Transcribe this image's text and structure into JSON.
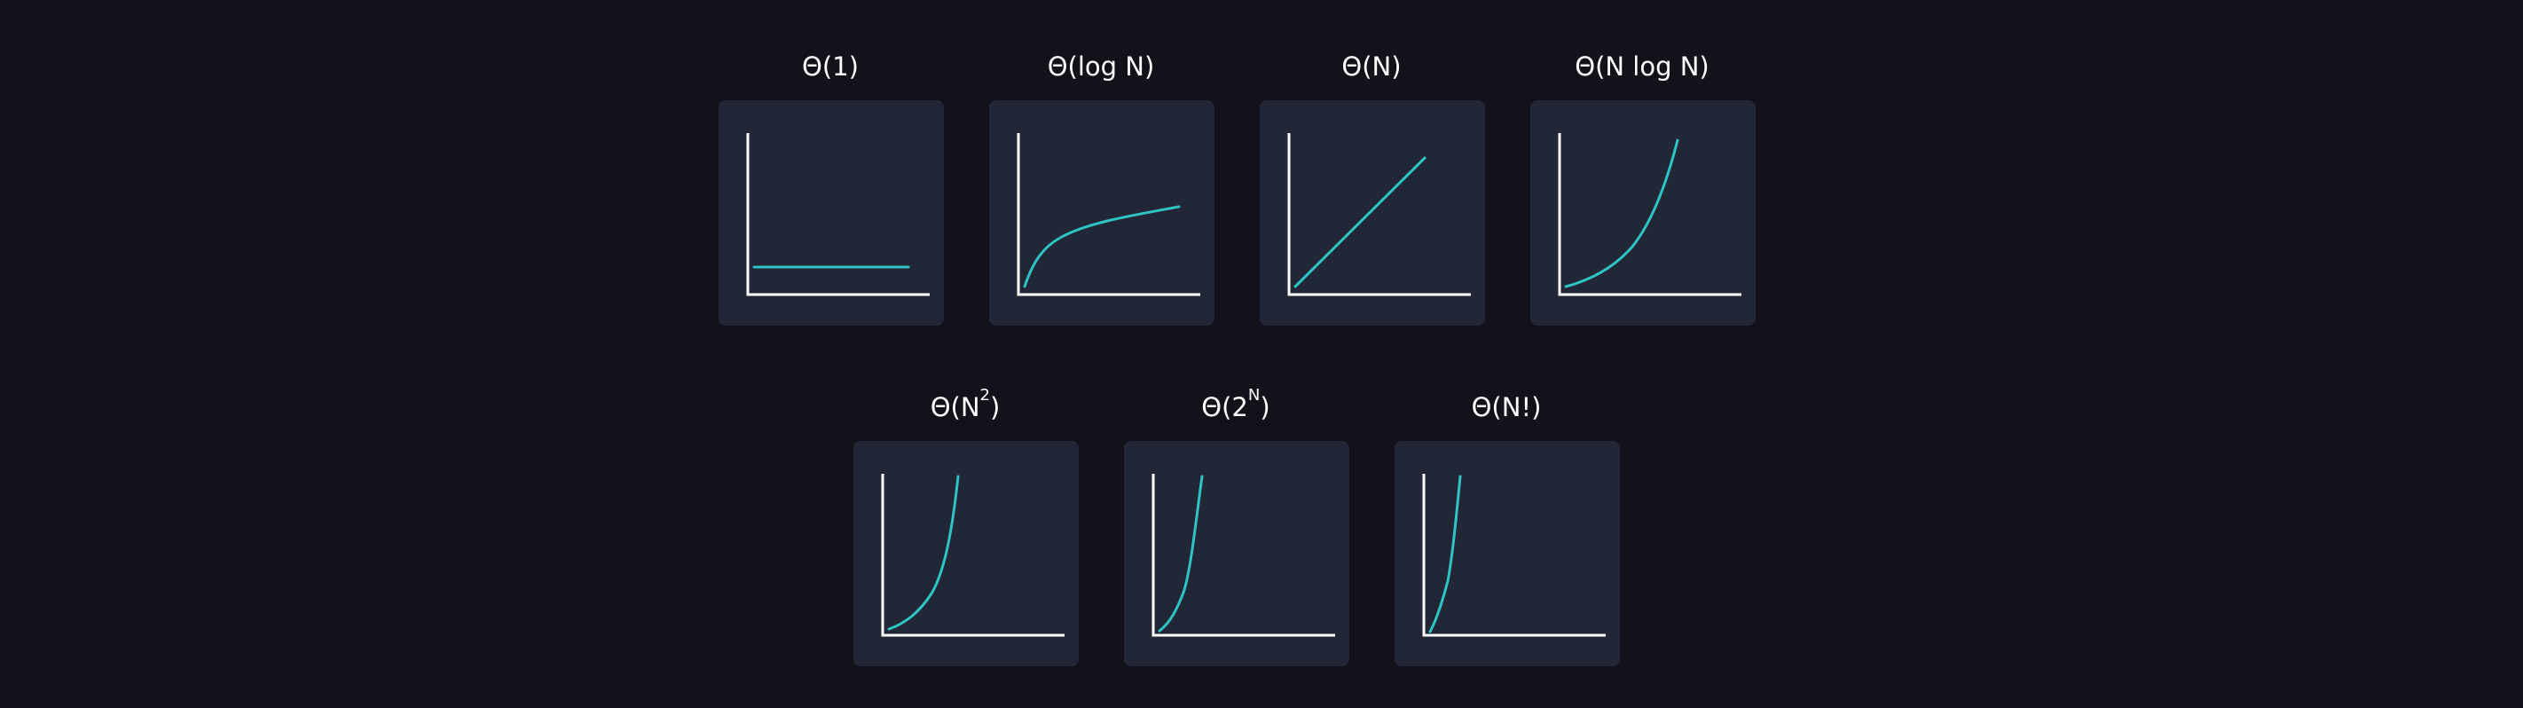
{
  "colors": {
    "background": "#13121b",
    "card": "#212736",
    "axis": "#ffffff",
    "curve": "#2ec4c4",
    "label": "#ffffff"
  },
  "complexities": [
    {
      "id": "constant",
      "label": "Θ(1)",
      "base": "Θ(1)",
      "sup": "",
      "tail": "",
      "curve_kind": "constant"
    },
    {
      "id": "logarithmic",
      "label": "Θ(log N)",
      "base": "Θ(log N)",
      "sup": "",
      "tail": "",
      "curve_kind": "log"
    },
    {
      "id": "linear",
      "label": "Θ(N)",
      "base": "Θ(N)",
      "sup": "",
      "tail": "",
      "curve_kind": "linear"
    },
    {
      "id": "linearithmic",
      "label": "Θ(N log N)",
      "base": "Θ(N log N)",
      "sup": "",
      "tail": "",
      "curve_kind": "nlogn"
    },
    {
      "id": "quadratic",
      "label": "Θ(N2)",
      "base": "Θ(N",
      "sup": "2",
      "tail": ")",
      "curve_kind": "quadratic"
    },
    {
      "id": "exponential",
      "label": "Θ(2N)",
      "base": "Θ(2",
      "sup": "N",
      "tail": ")",
      "curve_kind": "exponential"
    },
    {
      "id": "factorial",
      "label": "Θ(N!)",
      "base": "Θ(N!)",
      "sup": "",
      "tail": "",
      "curve_kind": "factorial"
    }
  ]
}
